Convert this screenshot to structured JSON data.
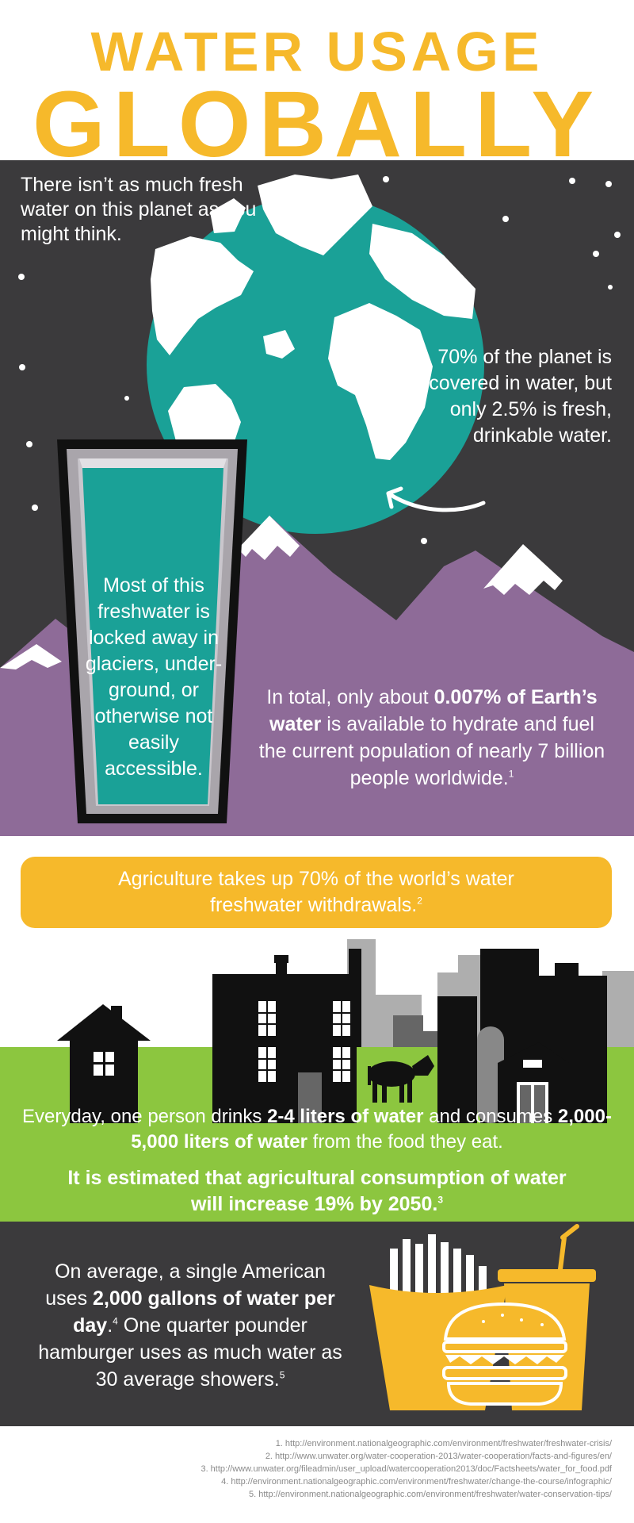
{
  "title": {
    "line1": "WATER USAGE",
    "line2": "GLOBALLY"
  },
  "night": {
    "intro": "There isn’t as much fresh water on this planet as you might think.",
    "seventy": "70% of the planet is covered in water, but only 2.5% is fresh, drinkable water.",
    "glass_text": "Most of this freshwater is locked away in glaciers, under- ground, or otherwise not easily accessible.",
    "total_pre": "In total, only about ",
    "total_bold": "0.007% of Earth’s water",
    "total_post": " is available to hydrate and fuel the current population of nearly 7 billion people worldwide.",
    "total_ref": "1"
  },
  "agriculture": {
    "text": "Agriculture takes up 70% of the world’s water freshwater withdrawals.",
    "ref": "2"
  },
  "farm": {
    "everyday_pre": "Everyday, one person drinks ",
    "everyday_bold1": "2-4 liters of water",
    "everyday_mid": " and consumes ",
    "everyday_bold2": "2,000-5,000 liters of water",
    "everyday_post": " from the food they eat.",
    "estimate": "It is estimated that agricultural consumption of water will increase 19% by 2050.",
    "estimate_ref": "3"
  },
  "food": {
    "pre": "On average, a single American uses ",
    "bold": "2,000 gallons of water per day",
    "mid": ". One quarter pounder hamburger uses as much water as 30 average showers.",
    "ref1": "4",
    "ref2": "5",
    "mid_a": ".",
    "mid_b": " One quarter pounder hamburger uses as much water as 30 average showers."
  },
  "footnotes": [
    "1. http://environment.nationalgeographic.com/environment/freshwater/freshwater-crisis/",
    "2. http://www.unwater.org/water-cooperation-2013/water-cooperation/facts-and-figures/en/",
    "3. http://www.unwater.org/fileadmin/user_upload/watercooperation2013/doc/Factsheets/water_for_food.pdf",
    "4. http://environment.nationalgeographic.com/environment/freshwater/change-the-course/infographic/",
    "5. http://environment.nationalgeographic.com/environment/freshwater/water-conservation-tips/"
  ],
  "colors": {
    "accent": "#f6b92b",
    "dark": "#3b3a3c",
    "teal": "#1aa197",
    "purple": "#8e6b98",
    "grass": "#8cc63f"
  }
}
